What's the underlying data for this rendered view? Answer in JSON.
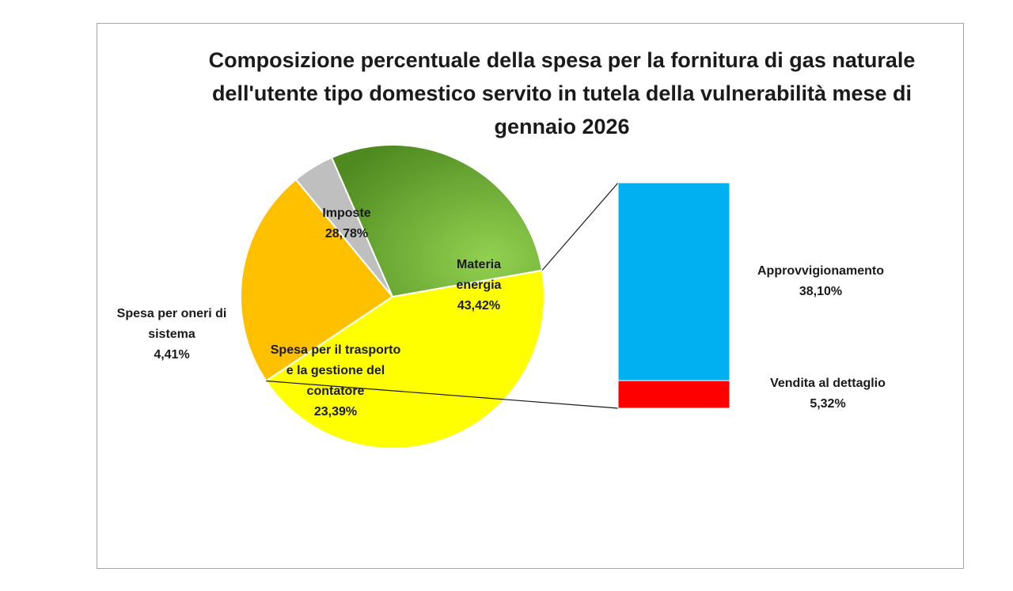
{
  "chart_data": {
    "type": "pie",
    "title": "Composizione percentuale della spesa per la fornitura di gas naturale dell'utente tipo domestico servito in tutela della vulnerabilità mese di gennaio 2026",
    "slices": [
      {
        "label_lines": [
          "Materia",
          "energia"
        ],
        "value_label": "43,42%",
        "value": 43.42,
        "color": "#ffff00"
      },
      {
        "label_lines": [
          "Spesa per il trasporto",
          "e la gestione del",
          "contatore"
        ],
        "value_label": "23,39%",
        "value": 23.39,
        "color": "#ffc000"
      },
      {
        "label_lines": [
          "Spesa per oneri di",
          "sistema"
        ],
        "value_label": "4,41%",
        "value": 4.41,
        "color": "#bfbfbf"
      },
      {
        "label_lines": [
          "Imposte"
        ],
        "value_label": "28,78%",
        "value": 28.78,
        "color": "#70ad2f"
      }
    ],
    "breakdown_of": "Materia energia",
    "breakdown": [
      {
        "label_lines": [
          "Approvvigionamento"
        ],
        "value_label": "38,10%",
        "value": 38.1,
        "color": "#00b0f0"
      },
      {
        "label_lines": [
          "Vendita al dettaglio"
        ],
        "value_label": "5,32%",
        "value": 5.32,
        "color": "#ff0000"
      }
    ]
  }
}
